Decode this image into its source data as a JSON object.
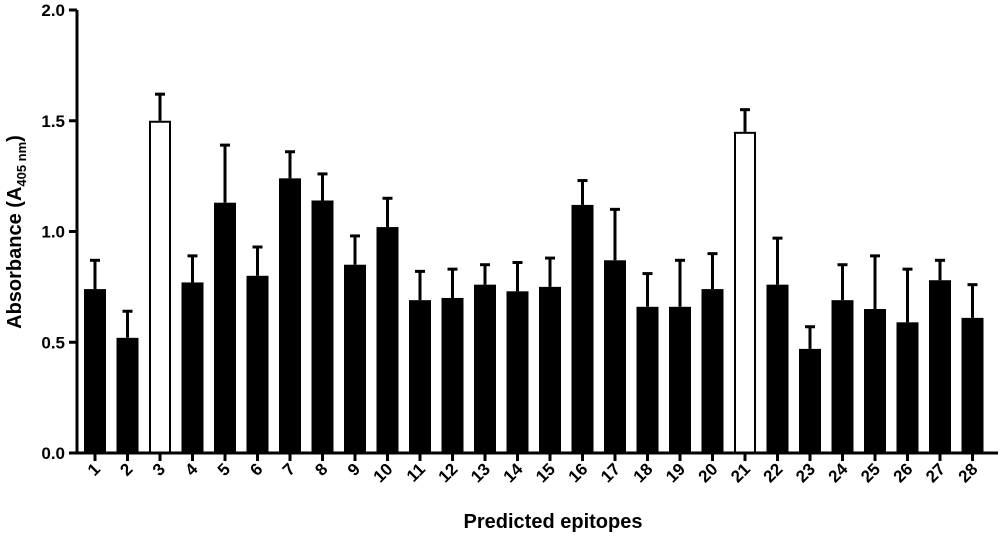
{
  "chart_data": {
    "type": "bar",
    "title": "",
    "xlabel": "Predicted epitopes",
    "ylabel": "Absorbance (A",
    "ylabel_subscript": "405 nm",
    "ylabel_close": ")",
    "ylim": [
      0.0,
      2.0
    ],
    "yticks": [
      0.0,
      0.5,
      1.0,
      1.5,
      2.0
    ],
    "ytick_labels": [
      "0.0",
      "0.5",
      "1.0",
      "1.5",
      "2.0"
    ],
    "grid": false,
    "legend": "none",
    "categories": [
      "1",
      "2",
      "3",
      "4",
      "5",
      "6",
      "7",
      "8",
      "9",
      "10",
      "11",
      "12",
      "13",
      "14",
      "15",
      "16",
      "17",
      "18",
      "19",
      "20",
      "21",
      "22",
      "23",
      "24",
      "25",
      "26",
      "27",
      "28"
    ],
    "values": [
      0.74,
      0.52,
      1.5,
      0.77,
      1.13,
      0.8,
      1.24,
      1.14,
      0.85,
      1.02,
      0.69,
      0.7,
      0.76,
      0.73,
      0.75,
      1.12,
      0.87,
      0.66,
      0.66,
      0.74,
      1.45,
      0.76,
      0.47,
      0.69,
      0.65,
      0.59,
      0.78,
      0.61
    ],
    "errors": [
      0.13,
      0.12,
      0.12,
      0.12,
      0.26,
      0.13,
      0.12,
      0.12,
      0.13,
      0.13,
      0.13,
      0.13,
      0.09,
      0.13,
      0.13,
      0.11,
      0.23,
      0.15,
      0.21,
      0.16,
      0.1,
      0.21,
      0.1,
      0.16,
      0.24,
      0.24,
      0.09,
      0.15
    ],
    "fill": [
      "black",
      "black",
      "white",
      "black",
      "black",
      "black",
      "black",
      "black",
      "black",
      "black",
      "black",
      "black",
      "black",
      "black",
      "black",
      "black",
      "black",
      "black",
      "black",
      "black",
      "white",
      "black",
      "black",
      "black",
      "black",
      "black",
      "black",
      "black"
    ],
    "colors": {
      "bar_filled": "#000000",
      "bar_open": "#ffffff",
      "stroke": "#000000"
    }
  }
}
